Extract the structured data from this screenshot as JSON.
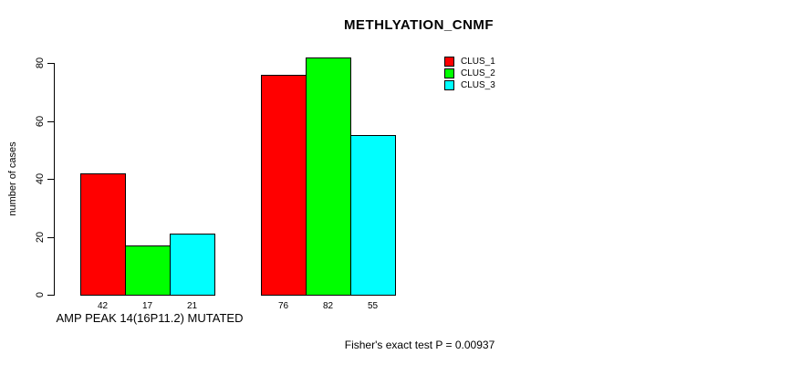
{
  "chart_data": {
    "type": "bar",
    "title": "METHLYATION_CNMF",
    "ylabel": "number of cases",
    "xlabel": "AMP PEAK 14(16P11.2) MUTATED",
    "ylim": [
      0,
      80
    ],
    "yticks": [
      0,
      20,
      40,
      60,
      80
    ],
    "grid": false,
    "bar_value_labels": true,
    "legend_position": "top-right",
    "n_groups": 2,
    "series": [
      {
        "name": "CLUS_1",
        "color": "#ff0000",
        "values": [
          42,
          76
        ]
      },
      {
        "name": "CLUS_2",
        "color": "#00ff00",
        "values": [
          17,
          82
        ]
      },
      {
        "name": "CLUS_3",
        "color": "#00ffff",
        "values": [
          21,
          55
        ]
      }
    ]
  },
  "footer": {
    "text": "Fisher's exact test P = 0.00937"
  },
  "colors": {
    "axis": "#000000",
    "background": "#ffffff",
    "bar_border": "#000000"
  }
}
